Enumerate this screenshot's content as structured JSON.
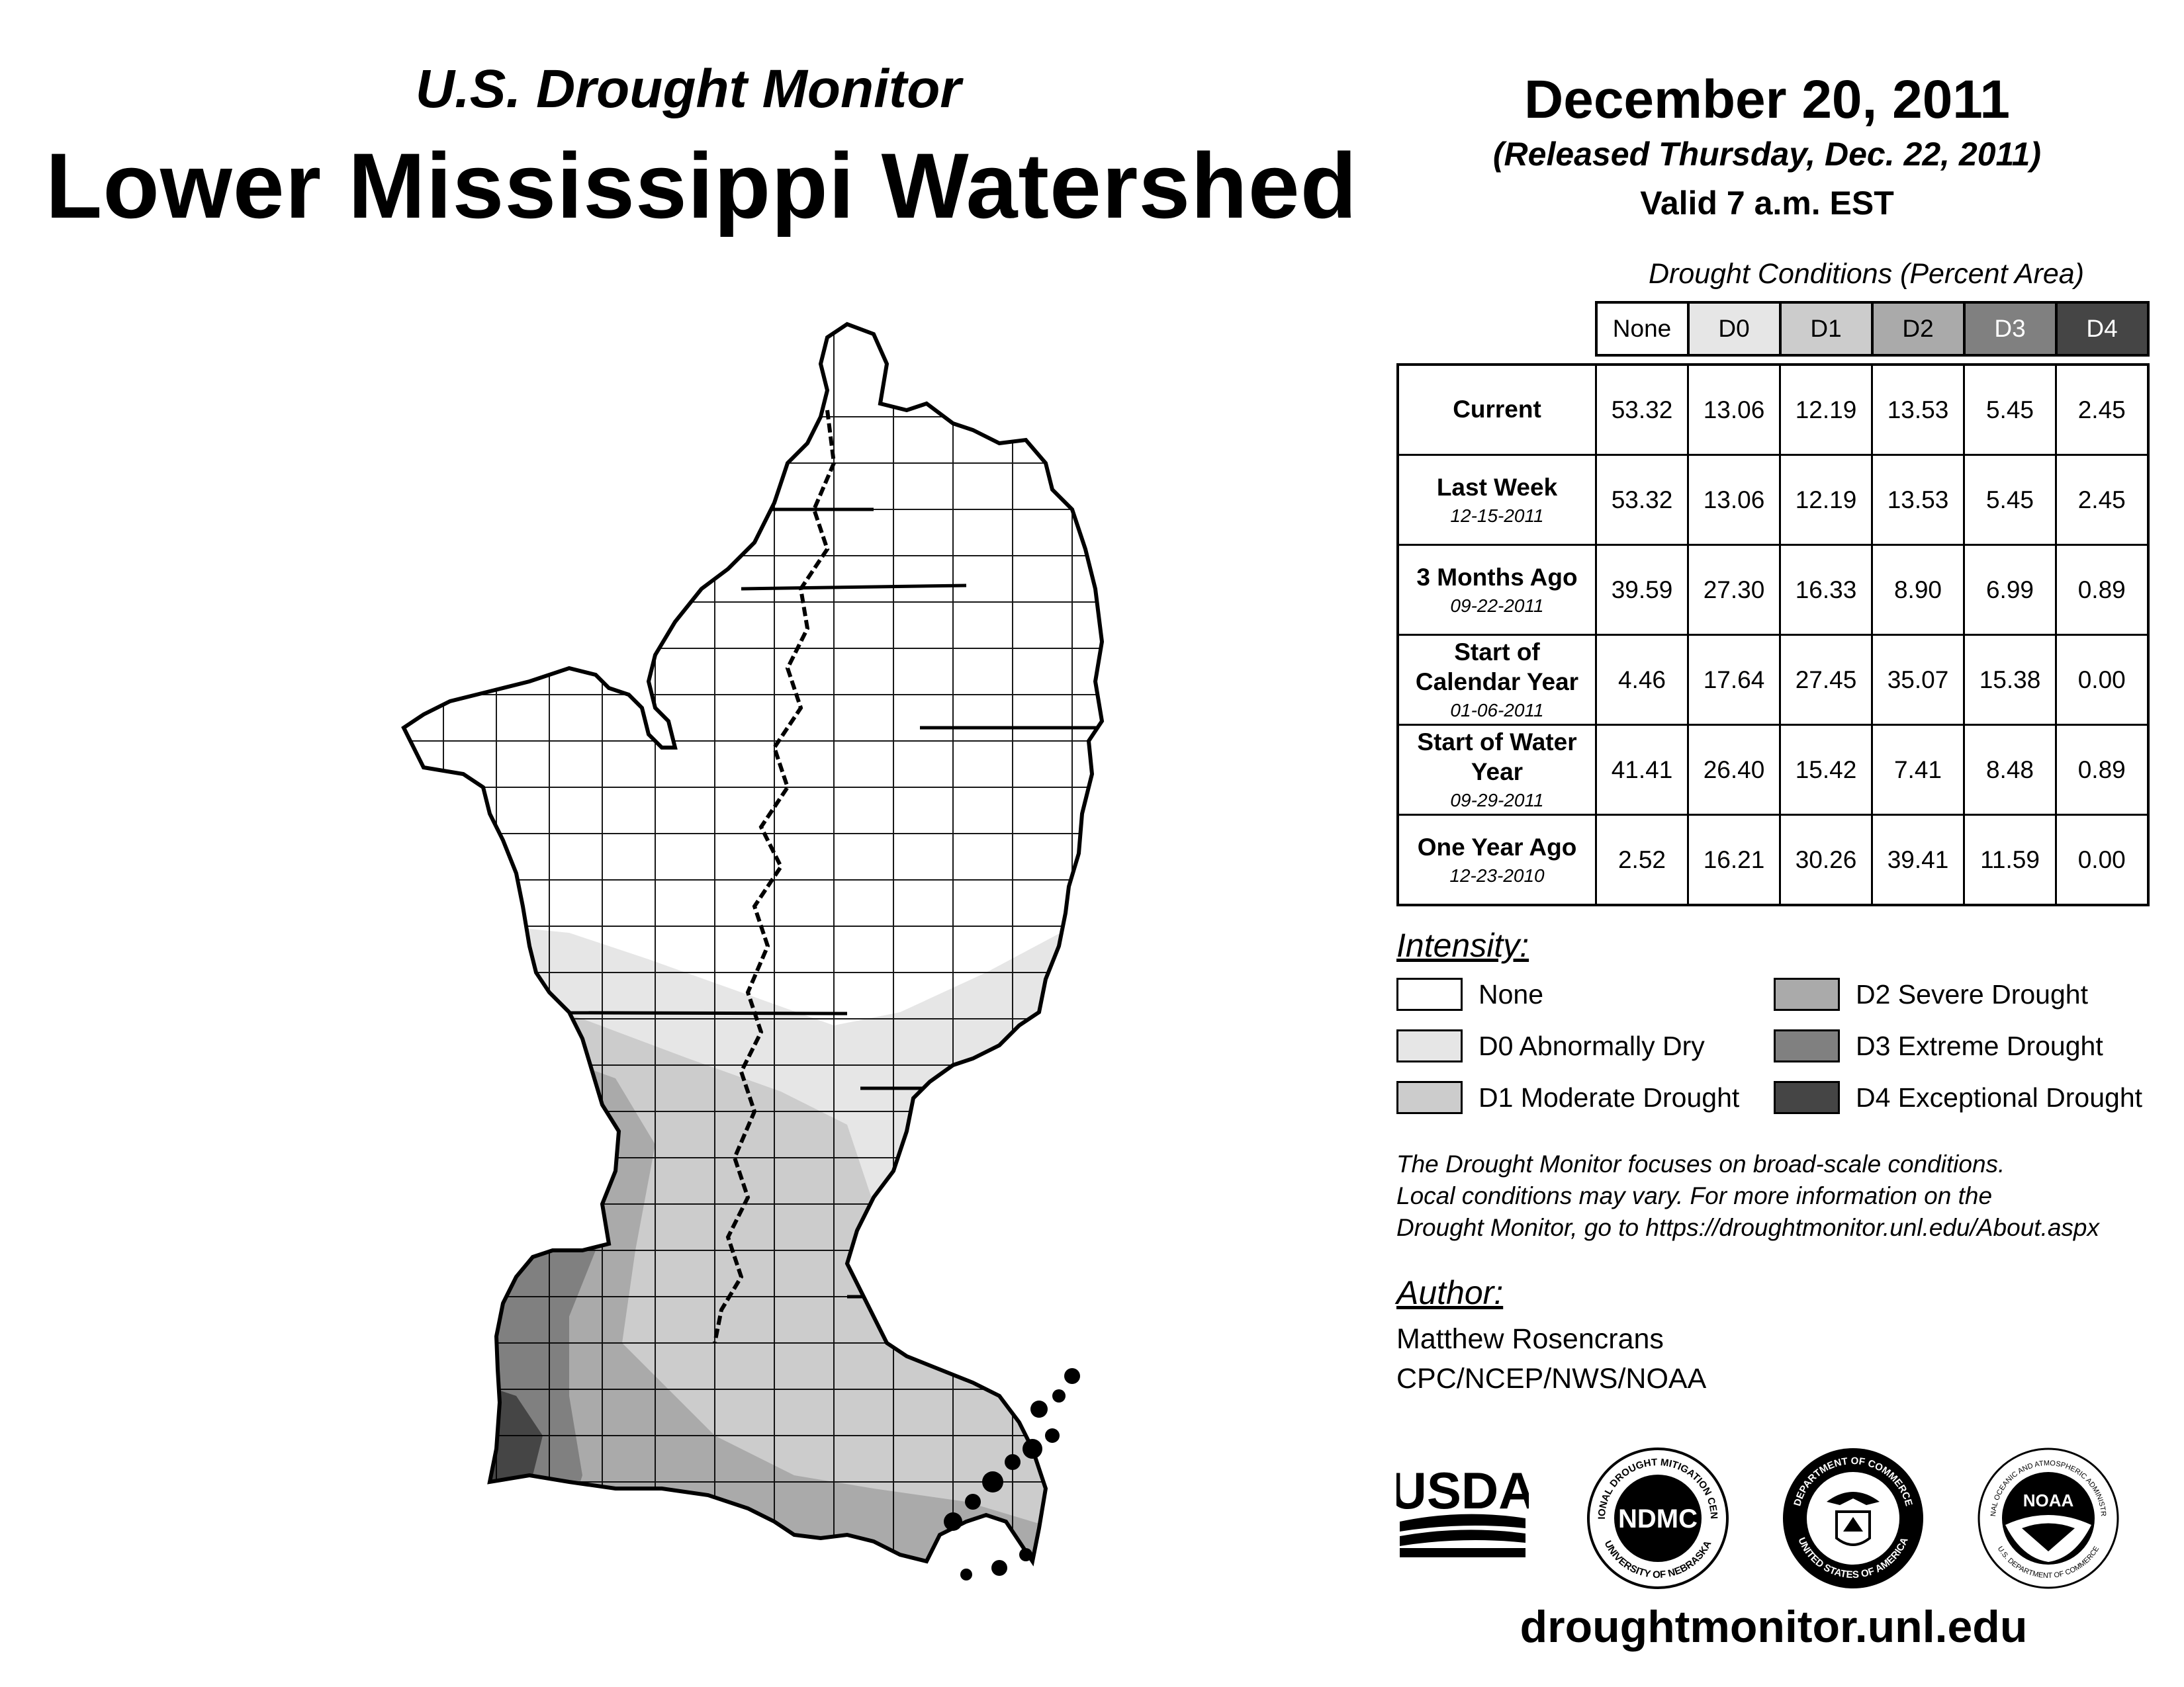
{
  "header": {
    "subtitle": "U.S. Drought Monitor",
    "title": "Lower Mississippi Watershed",
    "date": "December 20, 2011",
    "released": "(Released Thursday, Dec. 22, 2011)",
    "valid": "Valid 7 a.m. EST"
  },
  "table": {
    "caption": "Drought Conditions (Percent Area)",
    "columns": [
      "None",
      "D0",
      "D1",
      "D2",
      "D3",
      "D4"
    ],
    "column_colors": [
      "#ffffff",
      "#e6e6e6",
      "#cccccc",
      "#aaaaaa",
      "#808080",
      "#454545"
    ],
    "rows": [
      {
        "label": "Current",
        "date": "",
        "values": [
          "53.32",
          "13.06",
          "12.19",
          "13.53",
          "5.45",
          "2.45"
        ]
      },
      {
        "label": "Last Week",
        "date": "12-15-2011",
        "values": [
          "53.32",
          "13.06",
          "12.19",
          "13.53",
          "5.45",
          "2.45"
        ]
      },
      {
        "label": "3 Months Ago",
        "date": "09-22-2011",
        "values": [
          "39.59",
          "27.30",
          "16.33",
          "8.90",
          "6.99",
          "0.89"
        ]
      },
      {
        "label": "Start of Calendar Year",
        "date": "01-06-2011",
        "values": [
          "4.46",
          "17.64",
          "27.45",
          "35.07",
          "15.38",
          "0.00"
        ]
      },
      {
        "label": "Start of Water Year",
        "date": "09-29-2011",
        "values": [
          "41.41",
          "26.40",
          "15.42",
          "7.41",
          "8.48",
          "0.89"
        ]
      },
      {
        "label": "One Year Ago",
        "date": "12-23-2010",
        "values": [
          "2.52",
          "16.21",
          "30.26",
          "39.41",
          "11.59",
          "0.00"
        ]
      }
    ]
  },
  "legend": {
    "title": "Intensity:",
    "items": [
      {
        "label": "None",
        "color": "#ffffff"
      },
      {
        "label": "D0 Abnormally Dry",
        "color": "#e6e6e6"
      },
      {
        "label": "D1 Moderate Drought",
        "color": "#cccccc"
      },
      {
        "label": "D2 Severe Drought",
        "color": "#aaaaaa"
      },
      {
        "label": "D3 Extreme Drought",
        "color": "#808080"
      },
      {
        "label": "D4 Exceptional Drought",
        "color": "#454545"
      }
    ]
  },
  "note": {
    "line1": "The Drought Monitor focuses on broad-scale conditions.",
    "line2": "Local conditions may vary. For more information on the",
    "line3": "Drought Monitor, go to https://droughtmonitor.unl.edu/About.aspx"
  },
  "author": {
    "title": "Author:",
    "name": "Matthew Rosencrans",
    "org": "CPC/NCEP/NWS/NOAA"
  },
  "logos": {
    "usda": "USDA",
    "ndmc": "NDMC",
    "ndmc_ring_top": "NATIONAL DROUGHT MITIGATION CENTER",
    "ndmc_ring_bottom": "UNIVERSITY OF NEBRASKA",
    "commerce_ring_top": "DEPARTMENT OF COMMERCE",
    "commerce_ring_bottom": "UNITED STATES OF AMERICA",
    "noaa": "NOAA",
    "noaa_ring_top": "NATIONAL OCEANIC AND ATMOSPHERIC ADMINISTRATION",
    "noaa_ring_bottom": "U.S. DEPARTMENT OF COMMERCE"
  },
  "website": "droughtmonitor.unl.edu"
}
